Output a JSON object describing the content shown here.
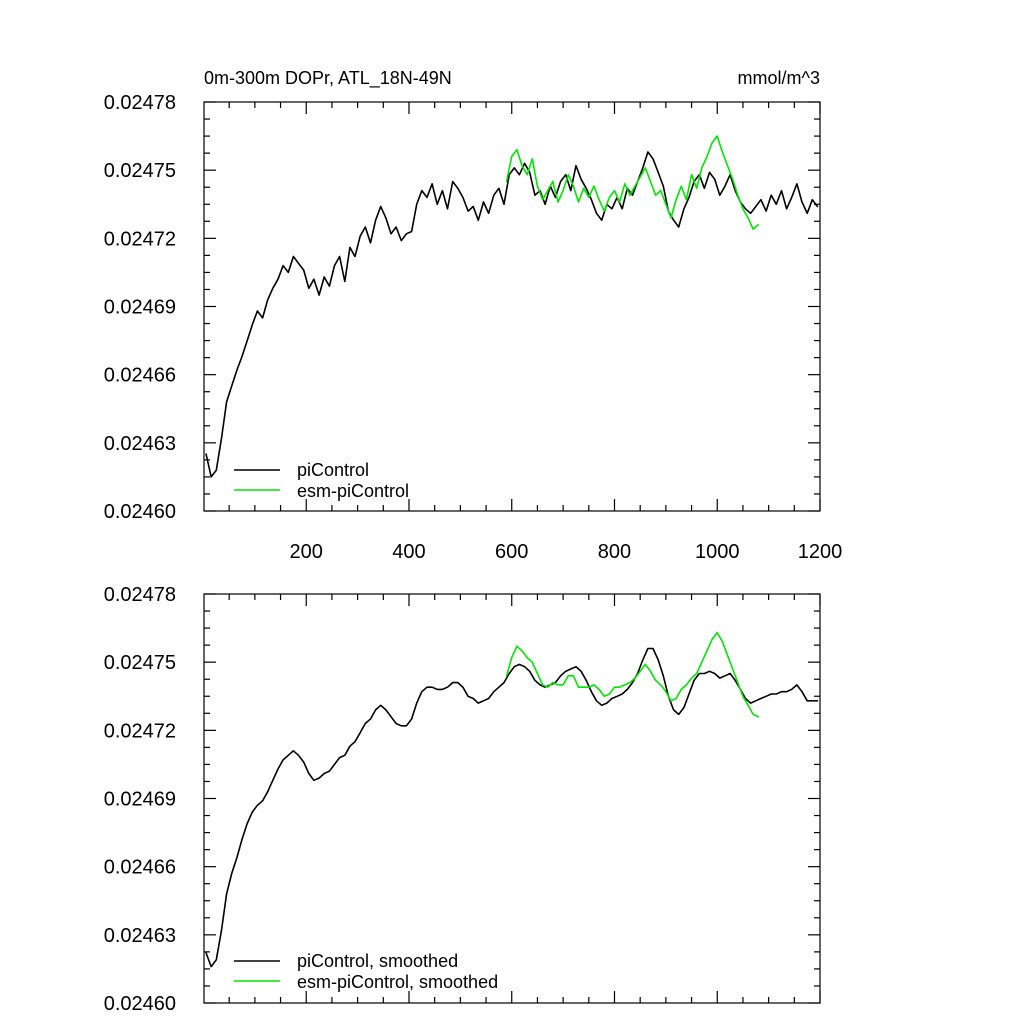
{
  "figure": {
    "title_left": "0m-300m DOPr, ATL_18N-49N",
    "title_right": "mmol/m^3"
  },
  "colors": {
    "piControl": "#000000",
    "esm_piControl": "#00e600"
  },
  "chart_data": [
    {
      "type": "line",
      "panel": "top",
      "title": "0m-300m DOPr, ATL_18N-49N",
      "units": "mmol/m^3",
      "xlim": [
        1,
        1200
      ],
      "ylim": [
        0.0246,
        0.02478
      ],
      "xticks": [
        200,
        400,
        600,
        800,
        1000,
        1200
      ],
      "xtick_labels": [
        "200",
        "400",
        "600",
        "800",
        "1000",
        "1200"
      ],
      "yticks": [
        0.0246,
        0.02463,
        0.02466,
        0.02469,
        0.02472,
        0.02475,
        0.02478
      ],
      "ytick_labels": [
        "0.02460",
        "0.02463",
        "0.02466",
        "0.02469",
        "0.02472",
        "0.02475",
        "0.02478"
      ],
      "legend_position": "bottom-left",
      "series": [
        {
          "name": "piControl",
          "color": "#000000",
          "x": [
            5,
            15,
            25,
            35,
            45,
            55,
            65,
            75,
            85,
            95,
            105,
            115,
            125,
            135,
            145,
            155,
            165,
            175,
            185,
            195,
            205,
            215,
            225,
            235,
            245,
            255,
            265,
            275,
            285,
            295,
            305,
            315,
            325,
            335,
            345,
            355,
            365,
            375,
            385,
            395,
            405,
            415,
            425,
            435,
            445,
            455,
            465,
            475,
            485,
            495,
            505,
            515,
            525,
            535,
            545,
            555,
            565,
            575,
            585,
            595,
            605,
            615,
            625,
            635,
            645,
            655,
            665,
            675,
            685,
            695,
            705,
            715,
            725,
            735,
            745,
            755,
            765,
            775,
            785,
            795,
            805,
            815,
            825,
            835,
            845,
            855,
            865,
            875,
            885,
            895,
            905,
            915,
            925,
            935,
            945,
            955,
            965,
            975,
            985,
            995,
            1005,
            1015,
            1025,
            1035,
            1045,
            1055,
            1065,
            1075,
            1085,
            1095,
            1105,
            1115,
            1125,
            1135,
            1145,
            1155,
            1165,
            1175,
            1185,
            1195
          ],
          "values": [
            0.024625,
            0.024615,
            0.024618,
            0.024632,
            0.024648,
            0.024655,
            0.024662,
            0.024668,
            0.024675,
            0.024682,
            0.024688,
            0.024685,
            0.024693,
            0.024698,
            0.024702,
            0.024708,
            0.024705,
            0.024712,
            0.024709,
            0.024706,
            0.024698,
            0.024702,
            0.024695,
            0.024703,
            0.024699,
            0.024708,
            0.024712,
            0.024701,
            0.024716,
            0.024712,
            0.024721,
            0.024725,
            0.024718,
            0.024728,
            0.024734,
            0.024729,
            0.024722,
            0.024725,
            0.024719,
            0.024722,
            0.024723,
            0.024735,
            0.024741,
            0.024738,
            0.024744,
            0.024735,
            0.024741,
            0.024733,
            0.024745,
            0.024742,
            0.024738,
            0.024732,
            0.024734,
            0.024728,
            0.024736,
            0.024731,
            0.024739,
            0.024742,
            0.024735,
            0.024748,
            0.024751,
            0.024748,
            0.024753,
            0.024749,
            0.024739,
            0.024741,
            0.024735,
            0.024743,
            0.024738,
            0.024745,
            0.024748,
            0.024741,
            0.024752,
            0.024746,
            0.024742,
            0.024737,
            0.024731,
            0.024728,
            0.024735,
            0.024733,
            0.024738,
            0.024733,
            0.024742,
            0.024739,
            0.024745,
            0.024751,
            0.024758,
            0.024755,
            0.024749,
            0.024743,
            0.024732,
            0.024728,
            0.024725,
            0.024733,
            0.024738,
            0.024745,
            0.024748,
            0.024742,
            0.024749,
            0.024746,
            0.024739,
            0.024743,
            0.024748,
            0.024741,
            0.024736,
            0.024733,
            0.024731,
            0.024734,
            0.024737,
            0.024732,
            0.024739,
            0.024735,
            0.024741,
            0.024733,
            0.024738,
            0.024744,
            0.024736,
            0.024731,
            0.024737,
            0.024734
          ]
        },
        {
          "name": "esm-piControl",
          "color": "#00e600",
          "x": [
            590,
            600,
            610,
            620,
            630,
            640,
            650,
            660,
            670,
            680,
            690,
            700,
            710,
            720,
            730,
            740,
            750,
            760,
            770,
            780,
            790,
            800,
            810,
            820,
            830,
            840,
            850,
            860,
            870,
            880,
            890,
            900,
            910,
            920,
            930,
            940,
            950,
            960,
            970,
            980,
            990,
            1000,
            1010,
            1020,
            1030,
            1040,
            1050,
            1060,
            1070,
            1080
          ],
          "values": [
            0.024745,
            0.024756,
            0.024759,
            0.024752,
            0.024748,
            0.024755,
            0.024743,
            0.024737,
            0.024741,
            0.024745,
            0.024736,
            0.024741,
            0.024748,
            0.024743,
            0.024736,
            0.024742,
            0.024738,
            0.024743,
            0.024737,
            0.024732,
            0.024738,
            0.024741,
            0.024736,
            0.024744,
            0.024739,
            0.024743,
            0.024747,
            0.024751,
            0.024745,
            0.024739,
            0.024741,
            0.024735,
            0.024729,
            0.024737,
            0.024743,
            0.024737,
            0.024748,
            0.024742,
            0.024751,
            0.024756,
            0.024762,
            0.024765,
            0.024758,
            0.024752,
            0.024746,
            0.024739,
            0.024733,
            0.024729,
            0.024724,
            0.024726
          ]
        }
      ]
    },
    {
      "type": "line",
      "panel": "bottom",
      "xlim": [
        1,
        1200
      ],
      "ylim": [
        0.0246,
        0.02478
      ],
      "xticks": [
        200,
        400,
        600,
        800,
        1000,
        1200
      ],
      "yticks": [
        0.0246,
        0.02463,
        0.02466,
        0.02469,
        0.02472,
        0.02475,
        0.02478
      ],
      "ytick_labels": [
        "0.02460",
        "0.02463",
        "0.02466",
        "0.02469",
        "0.02472",
        "0.02475",
        "0.02478"
      ],
      "legend_position": "bottom-left",
      "series": [
        {
          "name": "piControl, smoothed",
          "color": "#000000",
          "x": [
            5,
            15,
            25,
            35,
            45,
            55,
            65,
            75,
            85,
            95,
            105,
            115,
            125,
            135,
            145,
            155,
            165,
            175,
            185,
            195,
            205,
            215,
            225,
            235,
            245,
            255,
            265,
            275,
            285,
            295,
            305,
            315,
            325,
            335,
            345,
            355,
            365,
            375,
            385,
            395,
            405,
            415,
            425,
            435,
            445,
            455,
            465,
            475,
            485,
            495,
            505,
            515,
            525,
            535,
            545,
            555,
            565,
            575,
            585,
            595,
            605,
            615,
            625,
            635,
            645,
            655,
            665,
            675,
            685,
            695,
            705,
            715,
            725,
            735,
            745,
            755,
            765,
            775,
            785,
            795,
            805,
            815,
            825,
            835,
            845,
            855,
            865,
            875,
            885,
            895,
            905,
            915,
            925,
            935,
            945,
            955,
            965,
            975,
            985,
            995,
            1005,
            1015,
            1025,
            1035,
            1045,
            1055,
            1065,
            1075,
            1085,
            1095,
            1105,
            1115,
            1125,
            1135,
            1145,
            1155,
            1165,
            1175,
            1185,
            1195
          ],
          "values": [
            0.024622,
            0.024616,
            0.024619,
            0.024632,
            0.024648,
            0.024657,
            0.024664,
            0.024672,
            0.024679,
            0.024684,
            0.024687,
            0.024689,
            0.024693,
            0.024698,
            0.024703,
            0.024707,
            0.024709,
            0.024711,
            0.024709,
            0.024706,
            0.024701,
            0.024698,
            0.024699,
            0.024701,
            0.024702,
            0.024705,
            0.024708,
            0.024709,
            0.024713,
            0.024715,
            0.024719,
            0.024723,
            0.024725,
            0.024729,
            0.024731,
            0.024729,
            0.024726,
            0.024723,
            0.024722,
            0.024722,
            0.024725,
            0.024732,
            0.024737,
            0.024739,
            0.024739,
            0.024738,
            0.024738,
            0.024739,
            0.024741,
            0.024741,
            0.024739,
            0.024735,
            0.024734,
            0.024732,
            0.024733,
            0.024734,
            0.024737,
            0.024739,
            0.024741,
            0.024745,
            0.024748,
            0.024749,
            0.024748,
            0.024746,
            0.024742,
            0.02474,
            0.024739,
            0.02474,
            0.024741,
            0.024744,
            0.024746,
            0.024747,
            0.024748,
            0.024746,
            0.024742,
            0.024737,
            0.024733,
            0.024731,
            0.024732,
            0.024734,
            0.024735,
            0.024736,
            0.024738,
            0.024741,
            0.024745,
            0.024751,
            0.024756,
            0.024756,
            0.024751,
            0.024744,
            0.024735,
            0.024729,
            0.024727,
            0.02473,
            0.024736,
            0.024742,
            0.024745,
            0.024745,
            0.024746,
            0.024745,
            0.024743,
            0.024744,
            0.024745,
            0.024742,
            0.024738,
            0.024734,
            0.024732,
            0.024733,
            0.024734,
            0.024735,
            0.024736,
            0.024736,
            0.024737,
            0.024737,
            0.024738,
            0.02474,
            0.024737,
            0.024733,
            0.024733,
            0.024733
          ]
        },
        {
          "name": "esm-piControl, smoothed",
          "color": "#00e600",
          "x": [
            590,
            600,
            610,
            620,
            630,
            640,
            650,
            660,
            670,
            680,
            690,
            700,
            710,
            720,
            730,
            740,
            750,
            760,
            770,
            780,
            790,
            800,
            810,
            820,
            830,
            840,
            850,
            860,
            870,
            880,
            890,
            900,
            910,
            920,
            930,
            940,
            950,
            960,
            970,
            980,
            990,
            1000,
            1010,
            1020,
            1030,
            1040,
            1050,
            1060,
            1070,
            1080
          ],
          "values": [
            0.024744,
            0.024752,
            0.024757,
            0.024755,
            0.024752,
            0.02475,
            0.024745,
            0.02474,
            0.024739,
            0.024741,
            0.02474,
            0.02474,
            0.024744,
            0.024744,
            0.024739,
            0.024739,
            0.024739,
            0.02474,
            0.024738,
            0.024735,
            0.024736,
            0.024739,
            0.024739,
            0.02474,
            0.024741,
            0.024743,
            0.024746,
            0.024749,
            0.024746,
            0.024742,
            0.02474,
            0.024737,
            0.024733,
            0.024734,
            0.024738,
            0.02474,
            0.024743,
            0.024745,
            0.02475,
            0.024755,
            0.02476,
            0.024763,
            0.024759,
            0.024753,
            0.024747,
            0.024741,
            0.024735,
            0.024731,
            0.024727,
            0.024726
          ]
        }
      ]
    }
  ]
}
